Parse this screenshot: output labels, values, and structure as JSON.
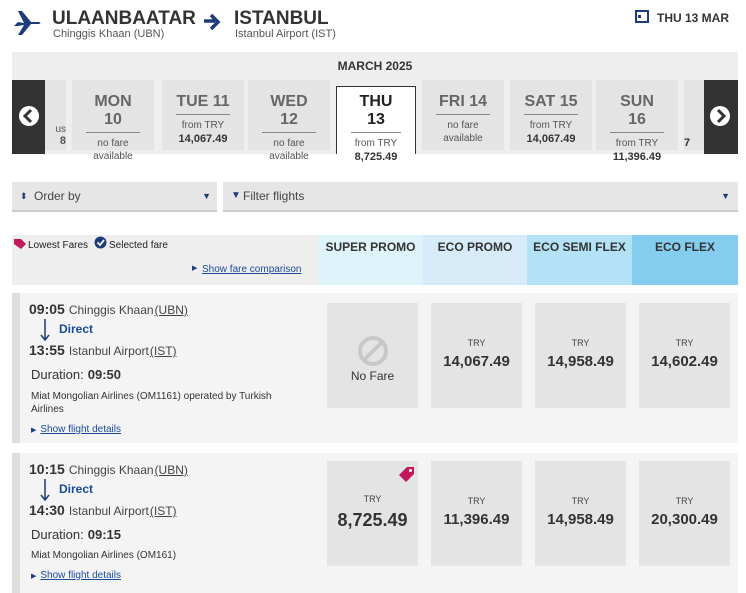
{
  "header": {
    "origin": "ULAANBAATAR",
    "origin_airport": "Chinggis Khaan (UBN)",
    "destination": "ISTANBUL",
    "destination_airport": "Istanbul Airport (IST)",
    "date": "THU 13 MAR"
  },
  "calendar": {
    "month": "MARCH 2025",
    "left_edge": [
      "us",
      "8"
    ],
    "right_edge": "7",
    "days": [
      {
        "day": "MON 10",
        "line1": "no fare",
        "line2": "available"
      },
      {
        "day": "TUE 11",
        "line1": "from TRY",
        "line2": "14,067.49"
      },
      {
        "day": "WED 12",
        "line1": "no fare",
        "line2": "available"
      },
      {
        "day": "THU 13",
        "line1": "from TRY",
        "line2": "8,725.49",
        "selected": true
      },
      {
        "day": "FRI 14",
        "line1": "no fare",
        "line2": "available"
      },
      {
        "day": "SAT 15",
        "line1": "from TRY",
        "line2": "14,067.49"
      },
      {
        "day": "SUN 16",
        "line1": "from TRY",
        "line2": "11,396.49"
      }
    ]
  },
  "controls": {
    "order": "Order by",
    "filter": "Filter flights"
  },
  "legend": {
    "lowest": "Lowest Fares",
    "selected": "Selected fare",
    "comparison": "Show fare comparison"
  },
  "fare_columns": [
    "SUPER PROMO",
    "ECO PROMO",
    "ECO SEMI FLEX",
    "ECO FLEX"
  ],
  "flights": [
    {
      "dep_time": "09:05",
      "dep_airport": "Chinggis Khaan",
      "dep_code": "(UBN)",
      "stop": "Direct",
      "arr_time": "13:55",
      "arr_airport": "Istanbul Airport",
      "arr_code": "(IST)",
      "duration_label": "Duration:",
      "duration": "09:50",
      "operator": "Miat Mongolian Airlines (OM1161) operated by Turkish Airlines",
      "details": "Show flight details",
      "fares": [
        {
          "label": "No Fare"
        },
        {
          "currency": "TRY",
          "price": "14,067.49"
        },
        {
          "currency": "TRY",
          "price": "14,958.49"
        },
        {
          "currency": "TRY",
          "price": "14,602.49"
        }
      ]
    },
    {
      "dep_time": "10:15",
      "dep_airport": "Chinggis Khaan",
      "dep_code": "(UBN)",
      "stop": "Direct",
      "arr_time": "14:30",
      "arr_airport": "Istanbul Airport",
      "arr_code": "(IST)",
      "duration_label": "Duration:",
      "duration": "09:15",
      "operator": "Miat Mongolian Airlines (OM161)",
      "details": "Show flight details",
      "fares": [
        {
          "currency": "TRY",
          "price": "8,725.49",
          "lowest": true
        },
        {
          "currency": "TRY",
          "price": "11,396.49"
        },
        {
          "currency": "TRY",
          "price": "14,958.49"
        },
        {
          "currency": "TRY",
          "price": "20,300.49"
        }
      ]
    }
  ]
}
